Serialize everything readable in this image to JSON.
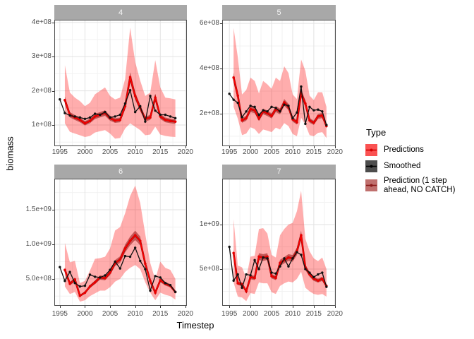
{
  "figure": {
    "colors": {
      "background": "#FFFFFF",
      "strip_bg": "#A8A8A8",
      "strip_text": "#F5F5F5",
      "panel_border": "#4D4D4D",
      "grid_major": "#E2E2E2",
      "grid_minor": "#F2F2F2",
      "ribbon_fill": "rgba(255,0,0,0.32)",
      "nc_ribbon_fill": "rgba(139,0,0,0.5)",
      "predictions_line": "#FF0000",
      "predictions_point": "#E60000",
      "smoothed_line": "#111111",
      "nc_line": "#8B0000",
      "axis_text": "#4D4D4D",
      "tick_color": "#333333"
    }
  },
  "axes": {
    "x_label": "Timestep",
    "y_label": "biomass"
  },
  "legend": {
    "title": "Type",
    "items": [
      {
        "label": "Predictions",
        "key_fill": "#FA5252",
        "key_line": "#D40000"
      },
      {
        "label": "Smoothed",
        "key_fill": "#4D4D4D",
        "key_line": "#000000"
      },
      {
        "label": "Prediction (1 step\n ahead, NO CATCH)",
        "key_fill": "#C0706E",
        "key_line": "#8B1A1A"
      }
    ]
  },
  "chart_data": [
    {
      "type": "line",
      "facet": "4",
      "unit": 100000000,
      "x_start_smoothed": 1995,
      "x_start_pred": 1996,
      "smoothed": [
        1.75,
        1.35,
        1.28,
        1.25,
        1.22,
        1.18,
        1.22,
        1.33,
        1.3,
        1.38,
        1.22,
        1.25,
        1.3,
        1.63,
        2.02,
        1.38,
        1.55,
        1.1,
        1.85,
        1.42,
        1.3,
        1.3,
        1.25,
        1.2
      ],
      "predictions": [
        1.73,
        1.3,
        1.22,
        1.15,
        1.05,
        1.12,
        1.25,
        1.3,
        1.35,
        1.2,
        1.13,
        1.15,
        1.55,
        2.4,
        1.85,
        1.5,
        1.18,
        1.22,
        1.8,
        1.25,
        1.15,
        1.12,
        1.1
      ],
      "ribbon_upper": [
        2.75,
        1.95,
        1.8,
        1.7,
        1.55,
        1.65,
        1.9,
        2.0,
        2.1,
        1.85,
        1.75,
        1.8,
        2.35,
        3.85,
        2.85,
        2.3,
        1.85,
        1.95,
        2.9,
        2.1,
        1.8,
        1.78,
        1.75
      ],
      "ribbon_lower": [
        1.05,
        0.8,
        0.75,
        0.7,
        0.65,
        0.68,
        0.78,
        0.82,
        0.85,
        0.75,
        0.6,
        0.62,
        0.9,
        1.05,
        0.95,
        0.85,
        0.7,
        0.72,
        0.95,
        0.72,
        0.68,
        0.66,
        0.65
      ],
      "nc_band_factor": [
        0.94,
        1.06
      ],
      "ylim": [
        0.38,
        4.08
      ],
      "yticks": [
        {
          "v": 1,
          "label": "1e+08"
        },
        {
          "v": 2,
          "label": "2e+08"
        },
        {
          "v": 3,
          "label": "3e+08"
        },
        {
          "v": 4,
          "label": "4e+08"
        }
      ],
      "yminor": [
        0.5,
        1.5,
        2.5,
        3.5
      ],
      "xlim": [
        1993.9,
        2020.3
      ],
      "xticks": [
        1995,
        2000,
        2005,
        2010,
        2015,
        2020
      ],
      "xminor": [
        1997.5,
        2002.5,
        2007.5,
        2012.5,
        2017.5
      ]
    },
    {
      "type": "line",
      "facet": "5",
      "unit": 100000000,
      "x_start_smoothed": 1995,
      "x_start_pred": 1996,
      "smoothed": [
        2.88,
        2.62,
        2.48,
        1.85,
        2.1,
        2.35,
        2.3,
        1.95,
        2.15,
        2.1,
        2.3,
        2.25,
        2.1,
        2.4,
        2.35,
        1.8,
        2.05,
        3.2,
        1.55,
        2.3,
        2.15,
        2.18,
        2.1,
        1.5
      ],
      "predictions": [
        3.6,
        2.8,
        1.7,
        1.8,
        2.2,
        2.15,
        1.78,
        2.1,
        2.02,
        1.9,
        2.2,
        2.1,
        2.5,
        2.3,
        1.75,
        1.62,
        2.9,
        2.45,
        1.7,
        1.6,
        1.88,
        1.92,
        1.45
      ],
      "ribbon_upper": [
        5.8,
        4.5,
        2.85,
        3.05,
        3.6,
        3.45,
        2.9,
        3.45,
        3.3,
        3.1,
        3.6,
        3.45,
        4.1,
        3.8,
        2.85,
        2.65,
        4.4,
        3.9,
        2.8,
        2.6,
        2.95,
        2.95,
        2.3
      ],
      "ribbon_lower": [
        2.3,
        1.78,
        1.05,
        1.12,
        1.4,
        1.32,
        1.1,
        1.3,
        1.25,
        1.18,
        1.38,
        1.3,
        1.58,
        1.45,
        1.1,
        1.0,
        1.82,
        1.52,
        1.05,
        1.0,
        1.15,
        1.18,
        0.92
      ],
      "nc_band_factor": [
        0.94,
        1.06
      ],
      "ylim": [
        0.56,
        6.16
      ],
      "yticks": [
        {
          "v": 2,
          "label": "2e+08"
        },
        {
          "v": 4,
          "label": "4e+08"
        },
        {
          "v": 6,
          "label": "6e+08"
        }
      ],
      "yminor": [
        1,
        3,
        5
      ],
      "xlim": [
        1993.3,
        2020.2
      ],
      "xticks": [
        1995,
        2000,
        2005,
        2010,
        2015,
        2020
      ],
      "xminor": [
        1997.5,
        2002.5,
        2007.5,
        2012.5,
        2017.5
      ]
    },
    {
      "type": "line",
      "facet": "6",
      "unit": 100000000,
      "x_start_smoothed": 1995,
      "x_start_pred": 1996,
      "smoothed": [
        6.7,
        4.7,
        6.0,
        4.4,
        3.9,
        4.0,
        5.6,
        5.3,
        5.2,
        5.5,
        6.3,
        7.5,
        6.5,
        8.3,
        8.2,
        9.5,
        7.6,
        6.4,
        3.3,
        5.4,
        5.2,
        4.4,
        4.1,
        3.1
      ],
      "predictions": [
        6.3,
        4.3,
        4.9,
        2.55,
        3.0,
        3.9,
        4.5,
        5.2,
        5.1,
        5.9,
        7.3,
        7.8,
        9.4,
        10.5,
        11.3,
        10.5,
        7.2,
        4.7,
        3.0,
        4.8,
        4.3,
        4.0,
        3.1
      ],
      "ribbon_upper": [
        10.2,
        7.4,
        7.6,
        4.4,
        4.7,
        6.2,
        7.9,
        8.0,
        8.2,
        9.4,
        12.0,
        12.5,
        14.5,
        17.0,
        18.5,
        16.0,
        11.5,
        7.3,
        4.9,
        7.5,
        6.6,
        6.3,
        5.0
      ],
      "ribbon_lower": [
        3.9,
        2.8,
        3.1,
        1.7,
        1.9,
        2.5,
        2.9,
        3.3,
        3.3,
        3.8,
        4.6,
        5.0,
        6.0,
        6.6,
        7.0,
        6.4,
        4.5,
        3.0,
        1.9,
        3.0,
        2.7,
        2.5,
        2.0
      ],
      "nc_band_factor": [
        0.94,
        1.06
      ],
      "ylim": [
        1.1,
        19.5
      ],
      "yticks": [
        {
          "v": 5,
          "label": "5.0e+08"
        },
        {
          "v": 10,
          "label": "1.0e+09"
        },
        {
          "v": 15,
          "label": "1.5e+09"
        }
      ],
      "yminor": [
        2.5,
        7.5,
        12.5,
        17.5
      ],
      "xlim": [
        1993.9,
        2020.3
      ],
      "xticks": [
        1995,
        2000,
        2005,
        2010,
        2015,
        2020
      ],
      "xminor": [
        1997.5,
        2002.5,
        2007.5,
        2012.5,
        2017.5
      ]
    },
    {
      "type": "line",
      "facet": "7",
      "unit": 100000000,
      "x_start_smoothed": 1995,
      "x_start_pred": 1996,
      "smoothed": [
        7.5,
        3.7,
        4.4,
        2.9,
        4.4,
        4.3,
        6.0,
        5.0,
        6.3,
        6.2,
        4.6,
        4.5,
        5.3,
        6.2,
        5.3,
        6.2,
        6.9,
        6.6,
        5.0,
        4.6,
        4.1,
        4.4,
        4.6,
        3.0
      ],
      "predictions": [
        6.8,
        3.4,
        3.3,
        2.5,
        4.1,
        4.0,
        6.4,
        6.3,
        6.4,
        4.2,
        4.0,
        5.7,
        6.0,
        6.3,
        6.2,
        7.0,
        8.8,
        5.2,
        4.4,
        3.9,
        3.7,
        3.9,
        3.1
      ],
      "ribbon_upper": [
        10.6,
        5.4,
        5.2,
        4.0,
        6.4,
        6.5,
        9.5,
        9.6,
        9.0,
        6.6,
        6.3,
        8.8,
        9.5,
        10.0,
        10.2,
        11.5,
        13.8,
        8.4,
        7.0,
        6.2,
        5.9,
        6.3,
        5.0
      ],
      "ribbon_lower": [
        3.5,
        1.9,
        1.8,
        1.4,
        2.3,
        2.2,
        3.5,
        3.4,
        3.4,
        2.4,
        2.2,
        3.1,
        3.4,
        3.6,
        3.5,
        3.9,
        4.7,
        2.9,
        2.5,
        2.2,
        2.1,
        2.2,
        1.9
      ],
      "nc_band_factor": [
        0.94,
        1.06
      ],
      "ylim": [
        0.87,
        15.16
      ],
      "yticks": [
        {
          "v": 5,
          "label": "5e+08"
        },
        {
          "v": 10,
          "label": "1e+09"
        }
      ],
      "yminor": [
        2.5,
        7.5,
        12.5
      ],
      "xlim": [
        1993.3,
        2020.2
      ],
      "xticks": [
        1995,
        2000,
        2005,
        2010,
        2015,
        2020
      ],
      "xminor": [
        1997.5,
        2002.5,
        2007.5,
        2012.5,
        2017.5
      ]
    }
  ]
}
